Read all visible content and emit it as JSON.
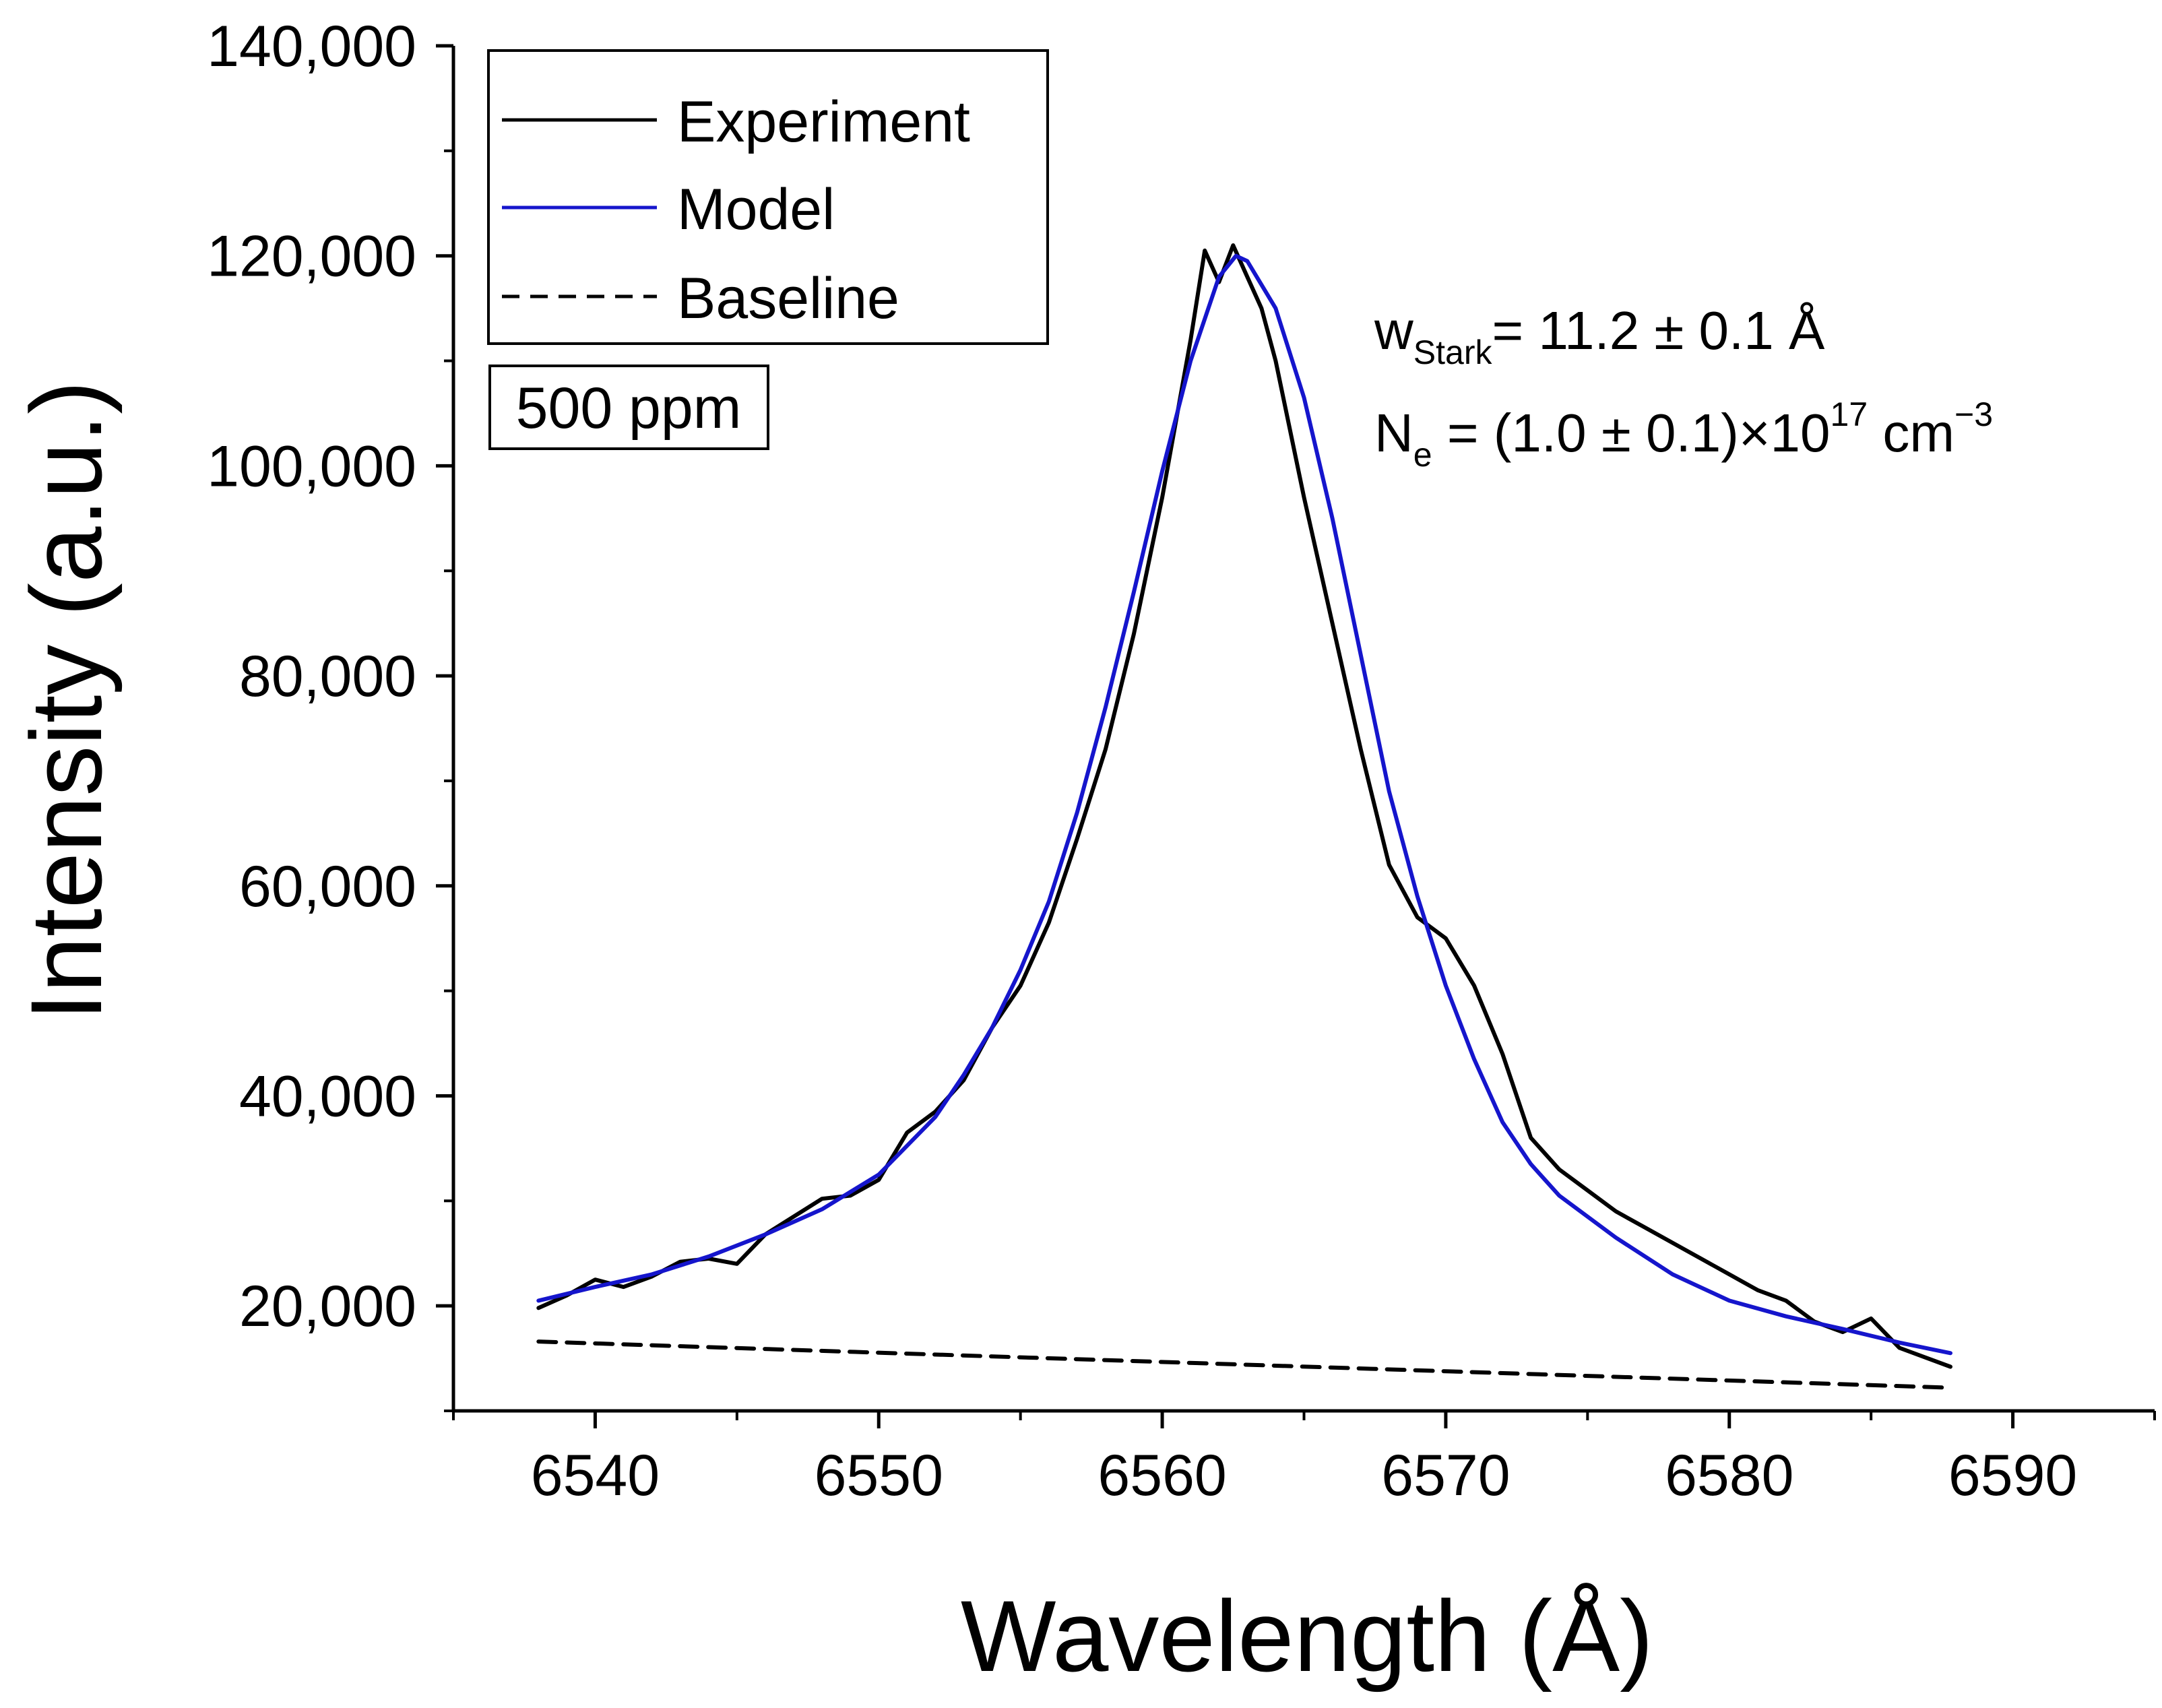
{
  "chart_data": {
    "type": "line",
    "xlabel": "Wavelength (Å)",
    "ylabel": "Intensity (a.u.)",
    "xlim": [
      6535,
      6595
    ],
    "ylim": [
      10000,
      140000
    ],
    "x_ticks": [
      6540,
      6550,
      6560,
      6570,
      6580,
      6590
    ],
    "x_tick_labels": [
      "6540",
      "6550",
      "6560",
      "6570",
      "6580",
      "6590"
    ],
    "y_ticks": [
      20000,
      40000,
      60000,
      80000,
      100000,
      120000,
      140000
    ],
    "y_tick_labels": [
      "20,000",
      "40,000",
      "60,000",
      "80,000",
      "100,000",
      "120,000",
      "140,000"
    ],
    "grid": false,
    "legend_position": "top-left",
    "legend": [
      "Experiment",
      "Model",
      "Baseline"
    ],
    "sample_label": "500 ppm",
    "annotations": {
      "stark_prefix": "w",
      "stark_sub": "Stark",
      "stark_value": "= 11.2 ± 0.1 Å",
      "ne_prefix": "N",
      "ne_sub": "e",
      "ne_value": " = (1.0 ± 0.1)×10",
      "ne_exp": "17",
      "ne_unit": " cm",
      "ne_unit_exp": "−3"
    },
    "series": [
      {
        "name": "Experiment",
        "color": "#000000",
        "style": "solid",
        "x": [
          6538,
          6539,
          6540,
          6541,
          6542,
          6543,
          6544,
          6545,
          6546,
          6547,
          6548,
          6549,
          6550,
          6551,
          6552,
          6553,
          6554,
          6555,
          6556,
          6557,
          6558,
          6559,
          6560,
          6561,
          6561.5,
          6562,
          6562.5,
          6563,
          6563.5,
          6564,
          6565,
          6566,
          6567,
          6568,
          6569,
          6570,
          6571,
          6572,
          6573,
          6574,
          6575,
          6576,
          6577,
          6578,
          6579,
          6580,
          6581,
          6582,
          6583,
          6584,
          6585,
          6586,
          6587,
          6587.8
        ],
        "y": [
          19800,
          21000,
          22500,
          21800,
          22800,
          24200,
          24500,
          24000,
          26800,
          28500,
          30200,
          30500,
          32000,
          36500,
          38500,
          41500,
          46500,
          50500,
          56500,
          64500,
          73000,
          84000,
          97000,
          112000,
          120500,
          117500,
          121000,
          118000,
          115000,
          110000,
          97000,
          85000,
          73000,
          62000,
          57000,
          55000,
          50500,
          44000,
          36000,
          33000,
          31000,
          29000,
          27500,
          26000,
          24500,
          23000,
          21500,
          20500,
          18500,
          17500,
          18800,
          16000,
          15000,
          14200
        ]
      },
      {
        "name": "Model",
        "color": "#1515cc",
        "style": "solid",
        "x": [
          6538,
          6540,
          6542,
          6544,
          6546,
          6548,
          6550,
          6552,
          6553,
          6554,
          6555,
          6556,
          6557,
          6558,
          6559,
          6560,
          6561,
          6562,
          6562.6,
          6563,
          6564,
          6565,
          6566,
          6567,
          6568,
          6569,
          6570,
          6571,
          6572,
          6573,
          6574,
          6576,
          6578,
          6580,
          6582,
          6584,
          6586,
          6587.8
        ],
        "y": [
          20500,
          21800,
          23000,
          24700,
          26800,
          29200,
          32500,
          38000,
          42000,
          46500,
          52000,
          58500,
          67000,
          77000,
          88000,
          99500,
          110000,
          118000,
          120000,
          119500,
          115000,
          106500,
          95000,
          82000,
          69000,
          59000,
          50500,
          43500,
          37500,
          33500,
          30500,
          26500,
          23000,
          20500,
          19000,
          17800,
          16500,
          15500
        ]
      },
      {
        "name": "Baseline",
        "color": "#000000",
        "style": "dashed",
        "x": [
          6538,
          6587.8
        ],
        "y": [
          16600,
          12200
        ]
      }
    ]
  }
}
